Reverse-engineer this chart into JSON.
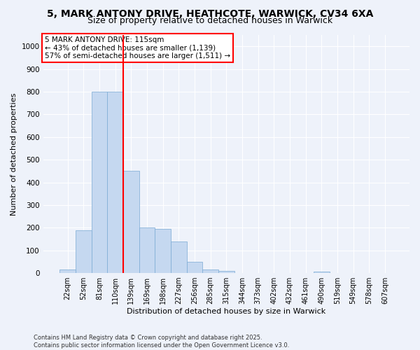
{
  "title_line1": "5, MARK ANTONY DRIVE, HEATHCOTE, WARWICK, CV34 6XA",
  "title_line2": "Size of property relative to detached houses in Warwick",
  "xlabel": "Distribution of detached houses by size in Warwick",
  "ylabel": "Number of detached properties",
  "categories": [
    "22sqm",
    "52sqm",
    "81sqm",
    "110sqm",
    "139sqm",
    "169sqm",
    "198sqm",
    "227sqm",
    "256sqm",
    "285sqm",
    "315sqm",
    "344sqm",
    "373sqm",
    "402sqm",
    "432sqm",
    "461sqm",
    "490sqm",
    "519sqm",
    "549sqm",
    "578sqm",
    "607sqm"
  ],
  "values": [
    15,
    190,
    800,
    800,
    450,
    200,
    195,
    140,
    50,
    15,
    10,
    0,
    0,
    0,
    0,
    0,
    5,
    0,
    0,
    0,
    0
  ],
  "bar_color": "#c5d8f0",
  "bar_edgecolor": "#7aaad4",
  "vline_color": "red",
  "vline_index": 3,
  "annotation_text": "5 MARK ANTONY DRIVE: 115sqm\n← 43% of detached houses are smaller (1,139)\n57% of semi-detached houses are larger (1,511) →",
  "annotation_box_edgecolor": "red",
  "annotation_box_facecolor": "white",
  "ylim": [
    0,
    1050
  ],
  "yticks": [
    0,
    100,
    200,
    300,
    400,
    500,
    600,
    700,
    800,
    900,
    1000
  ],
  "background_color": "#eef2fa",
  "grid_color": "white",
  "footer": "Contains HM Land Registry data © Crown copyright and database right 2025.\nContains public sector information licensed under the Open Government Licence v3.0.",
  "title_fontsize": 10,
  "subtitle_fontsize": 9,
  "xlabel_fontsize": 8,
  "ylabel_fontsize": 8,
  "tick_fontsize": 7,
  "annotation_fontsize": 7.5,
  "footer_fontsize": 6
}
